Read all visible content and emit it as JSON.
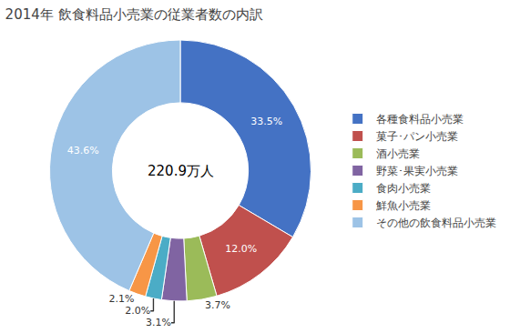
{
  "chart_data": {
    "type": "pie",
    "title": "2014年 飲食料品小売業の従業者数の内訳",
    "annotations": [
      "220.9万人"
    ],
    "categories": [
      "各種食料品小売業",
      "菓子･パン小売業",
      "酒小売業",
      "野菜･果実小売業",
      "食肉小売業",
      "鮮魚小売業",
      "その他の飲食料品小売業"
    ],
    "values": [
      33.5,
      12.0,
      3.7,
      3.1,
      2.0,
      2.1,
      43.6
    ],
    "value_labels": [
      "33.5%",
      "12.0%",
      "3.7%",
      "3.1%",
      "2.0%",
      "2.1%",
      "43.6%"
    ],
    "colors": [
      "#4472C4",
      "#C0504D",
      "#9BBB59",
      "#8064A2",
      "#4BACC6",
      "#F79646",
      "#9DC3E6"
    ],
    "data_labels": true,
    "legend": "right"
  }
}
